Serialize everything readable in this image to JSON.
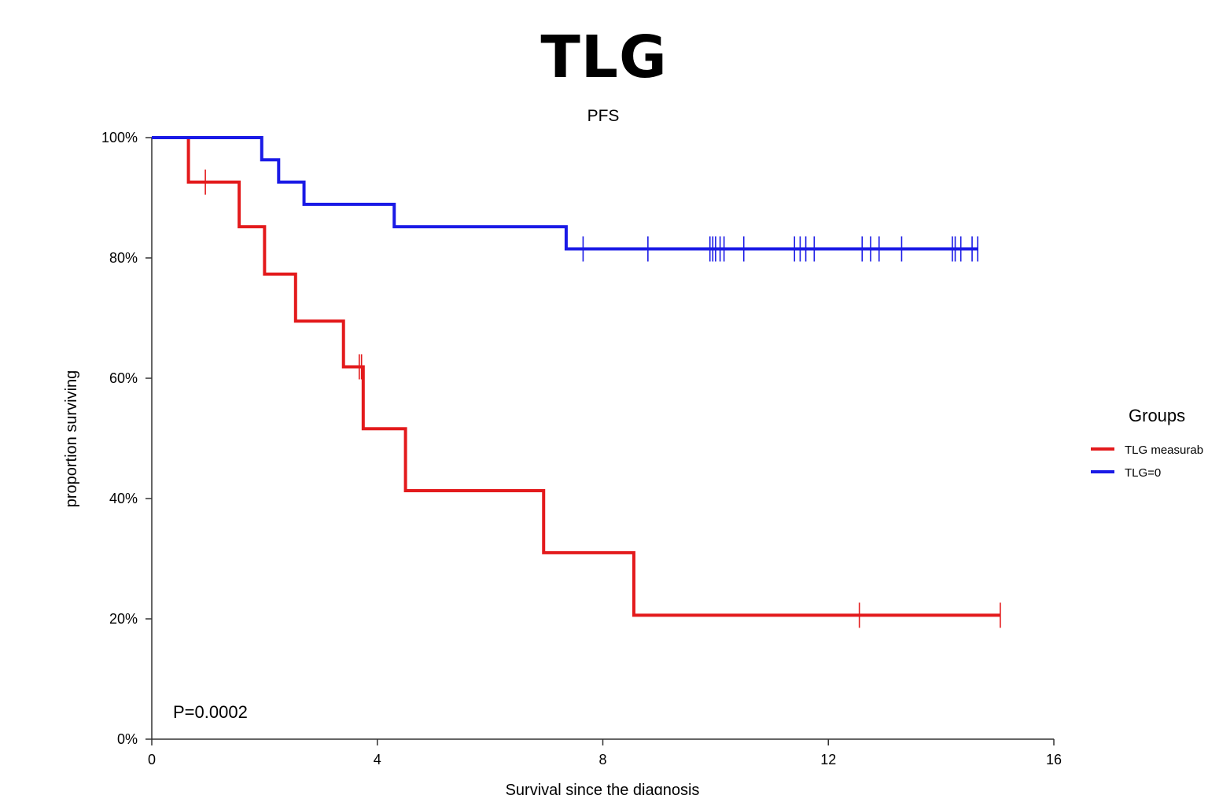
{
  "page_title": "TLG",
  "chart_data": {
    "type": "line",
    "subtitle": "PFS",
    "xlabel": "Survival since the diagnosis",
    "ylabel": "proportion surviving",
    "xlim": [
      0,
      16
    ],
    "ylim": [
      0,
      1
    ],
    "x_ticks": [
      0,
      4,
      8,
      12,
      16
    ],
    "y_ticks": [
      {
        "value": 0,
        "label": "0%"
      },
      {
        "value": 0.2,
        "label": "20%"
      },
      {
        "value": 0.4,
        "label": "40%"
      },
      {
        "value": 0.6,
        "label": "60%"
      },
      {
        "value": 0.8,
        "label": "80%"
      },
      {
        "value": 1.0,
        "label": "100%"
      }
    ],
    "annotation": "P=0.0002",
    "legend": {
      "title": "Groups",
      "placement": "right"
    },
    "series": [
      {
        "name": "TLG measurab",
        "color": "#e31a1c",
        "steps": [
          [
            0,
            1.0
          ],
          [
            0.65,
            0.926
          ],
          [
            1.55,
            0.852
          ],
          [
            2.0,
            0.773
          ],
          [
            2.55,
            0.695
          ],
          [
            3.4,
            0.619
          ],
          [
            3.75,
            0.516
          ],
          [
            4.5,
            0.413
          ],
          [
            6.95,
            0.31
          ],
          [
            8.55,
            0.206
          ],
          [
            15.05,
            0.206
          ]
        ],
        "censor": [
          0.95,
          3.68,
          3.72,
          12.55,
          15.05
        ]
      },
      {
        "name": "TLG=0",
        "color": "#1a1ae6",
        "steps": [
          [
            0,
            1.0
          ],
          [
            1.95,
            0.963
          ],
          [
            2.25,
            0.926
          ],
          [
            2.7,
            0.889
          ],
          [
            4.3,
            0.852
          ],
          [
            7.35,
            0.815
          ],
          [
            14.65,
            0.815
          ]
        ],
        "censor": [
          7.65,
          8.8,
          9.9,
          9.95,
          10.0,
          10.08,
          10.15,
          10.5,
          11.4,
          11.5,
          11.6,
          11.75,
          12.6,
          12.75,
          12.9,
          13.3,
          14.2,
          14.25,
          14.35,
          14.55,
          14.65
        ]
      }
    ]
  }
}
